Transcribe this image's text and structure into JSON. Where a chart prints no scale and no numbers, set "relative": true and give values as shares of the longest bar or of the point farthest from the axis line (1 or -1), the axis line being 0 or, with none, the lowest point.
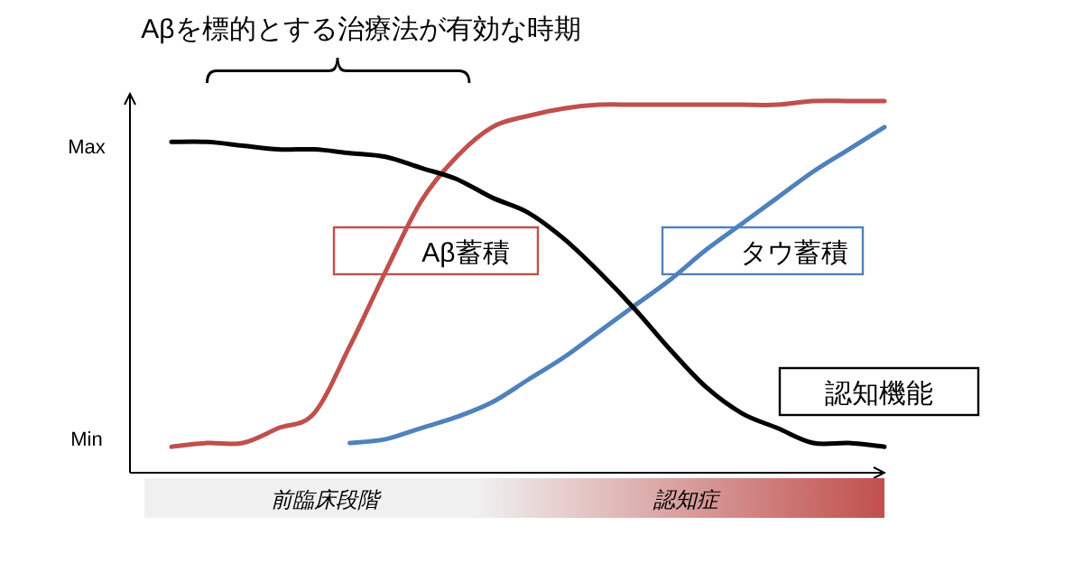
{
  "chart_data": {
    "type": "line",
    "relative": true,
    "categories": [
      null,
      null,
      null,
      null,
      null,
      null,
      null,
      null,
      null,
      null,
      null,
      null,
      null,
      null,
      null,
      null,
      null,
      null,
      null,
      null,
      null
    ],
    "series": [
      {
        "name": "Aβ蓄積",
        "color": "#c0504d",
        "values": [
          0.07,
          0.08,
          0.08,
          0.12,
          0.16,
          0.34,
          0.54,
          0.73,
          0.85,
          0.93,
          0.96,
          0.98,
          0.99,
          0.99,
          0.99,
          0.99,
          0.99,
          0.99,
          1,
          1,
          1
        ]
      },
      {
        "name": "タウ蓄積",
        "color": "#4f81bd",
        "values": [
          null,
          null,
          null,
          null,
          null,
          0.08,
          0.09,
          0.12,
          0.15,
          0.19,
          0.25,
          0.31,
          0.38,
          0.45,
          0.52,
          0.6,
          0.67,
          0.74,
          0.81,
          0.87,
          0.93
        ]
      },
      {
        "name": "認知機能",
        "color": "#000000",
        "values": [
          0.89,
          0.89,
          0.88,
          0.87,
          0.87,
          0.86,
          0.85,
          0.82,
          0.79,
          0.74,
          0.7,
          0.63,
          0.54,
          0.44,
          0.33,
          0.23,
          0.16,
          0.12,
          0.08,
          0.08,
          0.07
        ]
      }
    ],
    "annotations": [
      "Aβを標的とする治療法が有効な時期",
      "前臨床段階",
      "認知症",
      "Max",
      "Min"
    ]
  }
}
